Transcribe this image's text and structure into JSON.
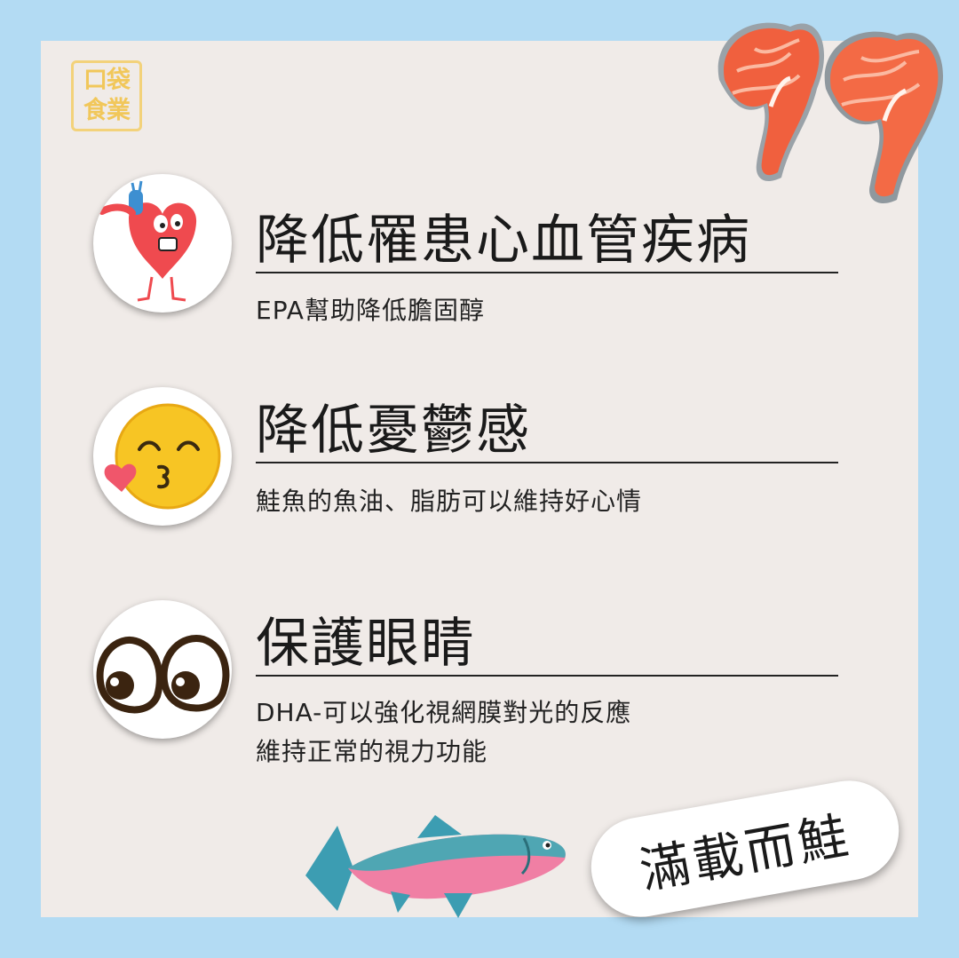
{
  "logo": {
    "line1": "口袋",
    "line2": "食業"
  },
  "items": [
    {
      "icon": "heart-character-icon",
      "title": "降低罹患心血管疾病",
      "desc": "EPA幫助降低膽固醇"
    },
    {
      "icon": "kissing-face-icon",
      "title": "降低憂鬱感",
      "desc": "鮭魚的魚油、脂肪可以維持好心情"
    },
    {
      "icon": "cartoon-eyes-icon",
      "title": "保護眼睛",
      "desc_line1": "DHA-可以強化視網膜對光的反應",
      "desc_line2": "維持正常的視力功能"
    }
  ],
  "badge": {
    "text": "滿載而鮭"
  },
  "colors": {
    "frame": "#b3dbf3",
    "card": "#f0ebe8",
    "logo": "#f1c75a",
    "salmon": "#f0603e",
    "heart": "#ef4a4f",
    "face": "#f7c524"
  }
}
